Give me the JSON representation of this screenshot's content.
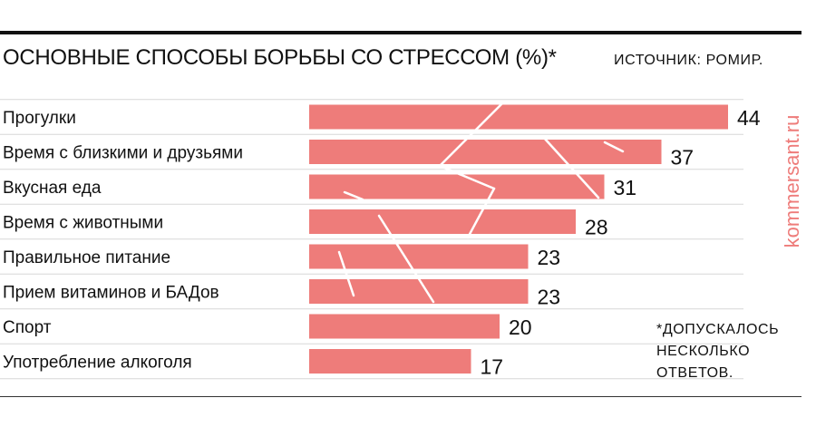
{
  "chart_data": {
    "type": "bar",
    "orientation": "horizontal",
    "title": "ОСНОВНЫЕ СПОСОБЫ БОРЬБЫ СО СТРЕССОМ (%)*",
    "source": "ИСТОЧНИК: РОМИР.",
    "categories": [
      "Прогулки",
      "Время с близкими и друзьями",
      "Вкусная еда",
      "Время с животными",
      "Правильное питание",
      "Прием витаминов и БАДов",
      "Спорт",
      "Употребление алкоголя"
    ],
    "values": [
      44,
      37,
      31,
      28,
      23,
      23,
      20,
      17
    ],
    "value_labels": [
      "44",
      "37",
      "31",
      "28",
      "23",
      "23",
      "20",
      "17"
    ],
    "bar_color": "#ee7c7a",
    "grid": false,
    "legend": "none"
  },
  "footnote": "*ДОПУСКАЛОСЬ НЕСКОЛЬКО ОТВЕТОВ.",
  "brand": "kommersant.ru",
  "colors": {
    "bar": "#ee7c7a",
    "rule": "#111111",
    "divider": "#d7d7d7",
    "brand": "#ee7c7a"
  }
}
